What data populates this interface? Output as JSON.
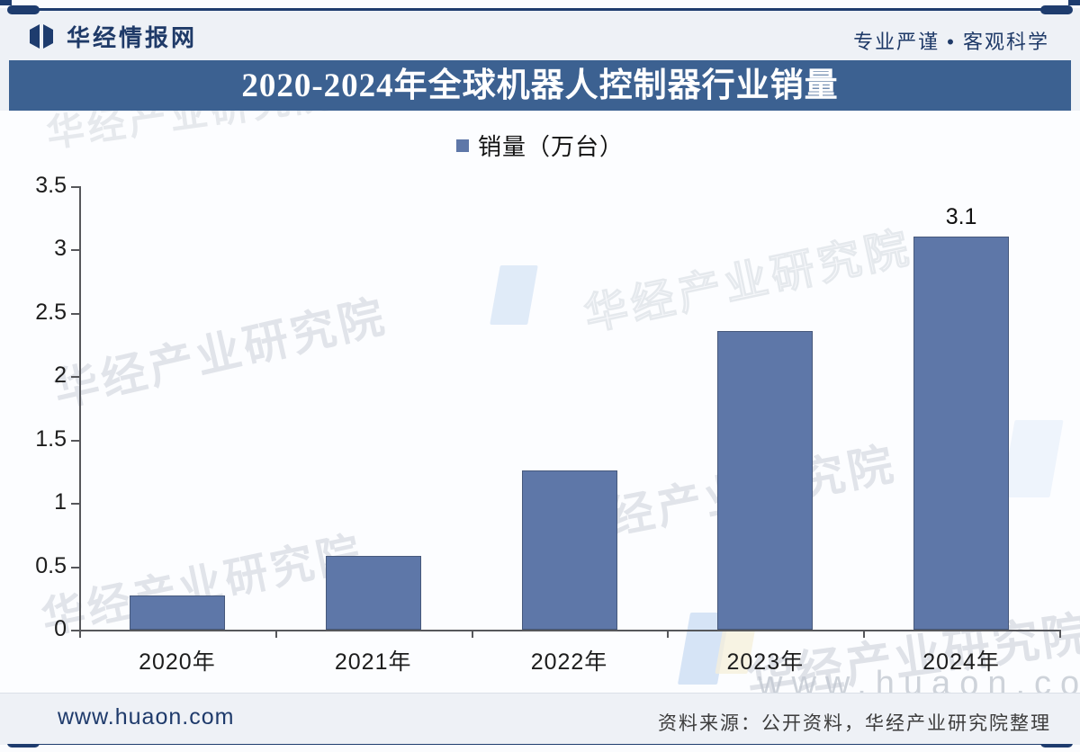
{
  "header": {
    "brand": "华经情报网",
    "slogan": "专业严谨 • 客观科学"
  },
  "title_bar": {
    "title": "2020-2024年全球机器人控制器行业销量"
  },
  "legend": {
    "label": "销量（万台）"
  },
  "chart_data": {
    "type": "bar",
    "title": "2020-2024年全球机器人控制器行业销量",
    "categories": [
      "2020年",
      "2021年",
      "2022年",
      "2023年",
      "2024年"
    ],
    "series": [
      {
        "name": "销量（万台）",
        "values": [
          0.27,
          0.58,
          1.26,
          2.36,
          3.1
        ]
      }
    ],
    "point_labels": [
      null,
      null,
      null,
      null,
      "3.1"
    ],
    "xlabel": "",
    "ylabel": "",
    "ylim": [
      0,
      3.5
    ],
    "ytick_step": 0.5,
    "grid": false,
    "legend_position": "top-center"
  },
  "watermarks": {
    "text": "华经产业研究院",
    "url": "www.huaon.com"
  },
  "footer": {
    "site": "www.huaon.com",
    "source": "资料来源：公开资料，华经产业研究院整理"
  },
  "colors": {
    "bar": "#5e77a8",
    "bar_border": "#47597c",
    "title_bar_bg": "#3c6191",
    "navy": "#1e3c6e",
    "axis": "#56575b"
  }
}
